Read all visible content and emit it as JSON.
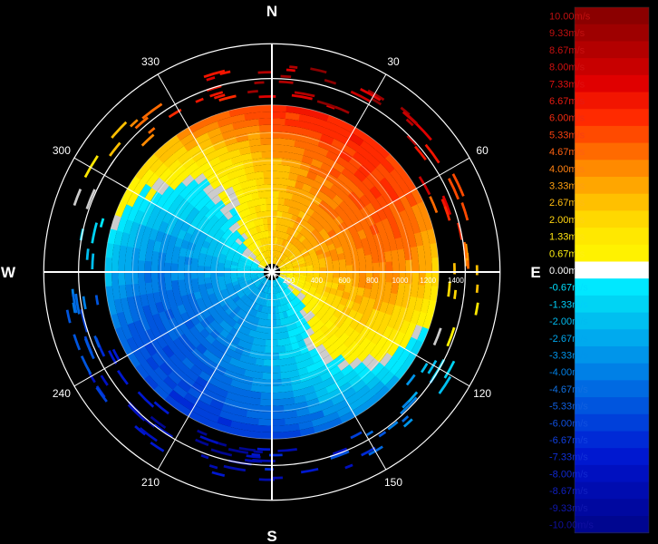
{
  "chart_data": {
    "type": "heatmap",
    "subtype": "polar radar radial-velocity display (PPI)",
    "compass": {
      "north": "N",
      "east": "E",
      "south": "S",
      "west": "W"
    },
    "azimuth_labels": [
      "30",
      "60",
      "120",
      "150",
      "210",
      "240",
      "300",
      "330"
    ],
    "range_labels": [
      "200",
      "400",
      "600",
      "800",
      "1000",
      "1200",
      "1400"
    ],
    "unit": "m/s",
    "colorbar": {
      "placement": "right",
      "levels": [
        {
          "label": "10.00m/s",
          "value": 10.0,
          "color": "#8b0000",
          "text_color": "#c01010"
        },
        {
          "label": "9.33m/s",
          "value": 9.33,
          "color": "#9e0000",
          "text_color": "#c01010"
        },
        {
          "label": "8.67m/s",
          "value": 8.67,
          "color": "#b30000",
          "text_color": "#c81010"
        },
        {
          "label": "8.00m/s",
          "value": 8.0,
          "color": "#c80000",
          "text_color": "#d01010"
        },
        {
          "label": "7.33m/s",
          "value": 7.33,
          "color": "#e00000",
          "text_color": "#e01010"
        },
        {
          "label": "6.67m/s",
          "value": 6.67,
          "color": "#f21500",
          "text_color": "#e81a10"
        },
        {
          "label": "6.00m/s",
          "value": 6.0,
          "color": "#ff2a00",
          "text_color": "#f02a10"
        },
        {
          "label": "5.33m/s",
          "value": 5.33,
          "color": "#ff4a00",
          "text_color": "#f84010"
        },
        {
          "label": "4.67m/s",
          "value": 4.67,
          "color": "#ff6a00",
          "text_color": "#ff6010"
        },
        {
          "label": "4.00m/s",
          "value": 4.0,
          "color": "#ff8a00",
          "text_color": "#ff8010"
        },
        {
          "label": "3.33m/s",
          "value": 3.33,
          "color": "#ffa600",
          "text_color": "#ffa010"
        },
        {
          "label": "2.67m/s",
          "value": 2.67,
          "color": "#ffc000",
          "text_color": "#ffbc10"
        },
        {
          "label": "2.00m/s",
          "value": 2.0,
          "color": "#ffd800",
          "text_color": "#ffd410"
        },
        {
          "label": "1.33m/s",
          "value": 1.33,
          "color": "#ffe800",
          "text_color": "#ffe410"
        },
        {
          "label": "0.67m/s",
          "value": 0.67,
          "color": "#fff200",
          "text_color": "#fff010"
        },
        {
          "label": "0.00m/s",
          "value": 0.0,
          "color": "#ffffff",
          "text_color": "#ffffff"
        },
        {
          "label": "-0.67m/s",
          "value": -0.67,
          "color": "#00e8ff",
          "text_color": "#00e0ff"
        },
        {
          "label": "-1.33m/s",
          "value": -1.33,
          "color": "#00d4f4",
          "text_color": "#00d0f8"
        },
        {
          "label": "-2.00m/s",
          "value": -2.0,
          "color": "#00bff0",
          "text_color": "#00bcf0"
        },
        {
          "label": "-2.67m/s",
          "value": -2.67,
          "color": "#00aaee",
          "text_color": "#00a8ee"
        },
        {
          "label": "-3.33m/s",
          "value": -3.33,
          "color": "#0095ea",
          "text_color": "#0094ea"
        },
        {
          "label": "-4.00m/s",
          "value": -4.0,
          "color": "#0080e6",
          "text_color": "#0080e6"
        },
        {
          "label": "-4.67m/s",
          "value": -4.67,
          "color": "#006ae2",
          "text_color": "#1070e2"
        },
        {
          "label": "-5.33m/s",
          "value": -5.33,
          "color": "#0055de",
          "text_color": "#1060e0"
        },
        {
          "label": "-6.00m/s",
          "value": -6.0,
          "color": "#0040da",
          "text_color": "#1050e0"
        },
        {
          "label": "-6.67m/s",
          "value": -6.67,
          "color": "#002ad6",
          "text_color": "#1040e0"
        },
        {
          "label": "-7.33m/s",
          "value": -7.33,
          "color": "#0018d0",
          "text_color": "#1030d8"
        },
        {
          "label": "-8.00m/s",
          "value": -8.0,
          "color": "#0010c0",
          "text_color": "#1028d0"
        },
        {
          "label": "-8.67m/s",
          "value": -8.67,
          "color": "#000cb0",
          "text_color": "#1020c0"
        },
        {
          "label": "-9.33m/s",
          "value": -9.33,
          "color": "#0008a0",
          "text_color": "#1018b0"
        },
        {
          "label": "-10.00m/s",
          "value": -10.0,
          "color": "#000690",
          "text_color": "#1010a0"
        }
      ]
    },
    "velocity_field": {
      "receding_sector_deg": [
        280,
        95
      ],
      "approaching_sector_deg": [
        95,
        280
      ],
      "zero_line": "S-shaped boundary from west to east through center",
      "data_range_max": 1200,
      "noise_ring_range": [
        1250,
        1500
      ]
    },
    "grid": true
  }
}
